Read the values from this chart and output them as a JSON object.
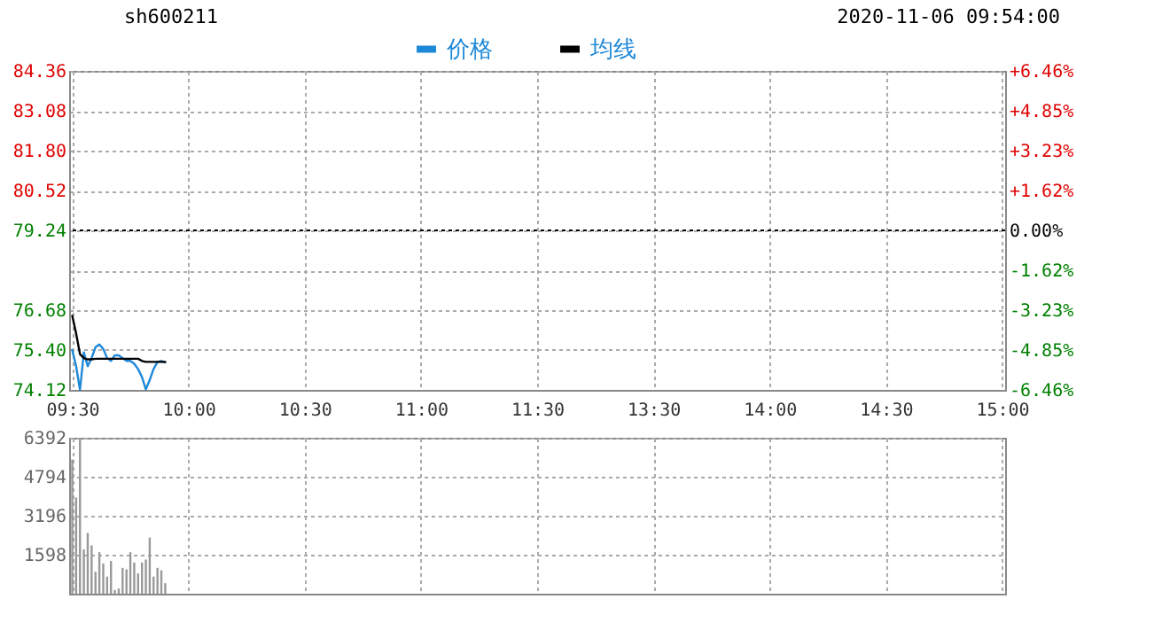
{
  "chart_data": [
    {
      "type": "line",
      "title": "sh600211",
      "annotations": [
        "2020-11-06 09:54:00"
      ],
      "categories": [
        "09:30",
        null,
        null,
        null,
        null,
        null,
        null,
        null,
        null,
        null,
        null,
        null,
        null,
        null,
        null,
        null,
        null,
        null,
        null,
        null,
        null,
        null,
        null,
        null,
        null,
        null,
        null,
        null,
        null,
        null,
        "10:00",
        null,
        null,
        null,
        null,
        null,
        null,
        null,
        null,
        null,
        null,
        null,
        null,
        null,
        null,
        null,
        null,
        null,
        null,
        null,
        null,
        null,
        null,
        null,
        null,
        null,
        null,
        null,
        null,
        null,
        "10:30",
        null,
        null,
        null,
        null,
        null,
        null,
        null,
        null,
        null,
        null,
        null,
        null,
        null,
        null,
        null,
        null,
        null,
        null,
        null,
        null,
        null,
        null,
        null,
        null,
        null,
        null,
        null,
        null,
        null,
        "11:00",
        null,
        null,
        null,
        null,
        null,
        null,
        null,
        null,
        null,
        null,
        null,
        null,
        null,
        null,
        null,
        null,
        null,
        null,
        null,
        null,
        null,
        null,
        null,
        null,
        null,
        null,
        null,
        null,
        null,
        "11:30",
        null,
        null,
        null,
        null,
        null,
        null,
        null,
        null,
        null,
        null,
        null,
        null,
        null,
        null,
        null,
        null,
        null,
        null,
        null,
        null,
        null,
        null,
        null,
        null,
        null,
        null,
        null,
        null,
        null,
        "13:30",
        null,
        null,
        null,
        null,
        null,
        null,
        null,
        null,
        null,
        null,
        null,
        null,
        null,
        null,
        null,
        null,
        null,
        null,
        null,
        null,
        null,
        null,
        null,
        null,
        null,
        null,
        null,
        null,
        null,
        "14:00",
        null,
        null,
        null,
        null,
        null,
        null,
        null,
        null,
        null,
        null,
        null,
        null,
        null,
        null,
        null,
        null,
        null,
        null,
        null,
        null,
        null,
        null,
        null,
        null,
        null,
        null,
        null,
        null,
        null,
        "14:30",
        null,
        null,
        null,
        null,
        null,
        null,
        null,
        null,
        null,
        null,
        null,
        null,
        null,
        null,
        null,
        null,
        null,
        null,
        null,
        null,
        null,
        null,
        null,
        null,
        null,
        null,
        null,
        null,
        null,
        "15:00"
      ],
      "ylim": [
        74.12,
        84.36
      ],
      "yticks": [
        74.12,
        {
          "value": 75.4,
          "label": "75.40"
        },
        76.68,
        {
          "value": 77.96,
          "label": null
        },
        79.24,
        80.52,
        {
          "value": 81.8,
          "label": "81.80"
        },
        83.08,
        84.36
      ],
      "y2lim": [
        -6.46,
        6.46
      ],
      "y2ticks": [
        {
          "value": -6.46,
          "label": "-6.46%"
        },
        {
          "value": -4.85,
          "label": "-4.85%"
        },
        {
          "value": -3.23,
          "label": "-3.23%"
        },
        {
          "value": -1.62,
          "label": "-1.62%"
        },
        {
          "value": 0,
          "label": "0.00%"
        },
        {
          "value": 1.62,
          "label": "+1.62%"
        },
        {
          "value": 3.23,
          "label": "+3.23%"
        },
        {
          "value": 4.85,
          "label": "+4.85%"
        },
        {
          "value": 6.46,
          "label": "+6.46%"
        }
      ],
      "series": [
        {
          "name": "价格",
          "color": "#1e88d8",
          "values": [
            75.4,
            74.88,
            74.12,
            75.32,
            74.88,
            75.14,
            75.49,
            75.58,
            75.44,
            75.14,
            75.05,
            75.23,
            75.23,
            75.14,
            75.05,
            75.05,
            74.96,
            74.79,
            74.53,
            74.14,
            74.44,
            74.79,
            75.02,
            75.05,
            75.0,
            null,
            null,
            null,
            null,
            null,
            null,
            null,
            null,
            null,
            null,
            null,
            null,
            null,
            null,
            null,
            null,
            null,
            null,
            null,
            null,
            null,
            null,
            null,
            null,
            null,
            null,
            null,
            null,
            null,
            null,
            null,
            null,
            null,
            null,
            null,
            null,
            null,
            null,
            null,
            null,
            null,
            null,
            null,
            null,
            null,
            null,
            null,
            null,
            null,
            null,
            null,
            null,
            null,
            null,
            null,
            null,
            null,
            null,
            null,
            null,
            null,
            null,
            null,
            null,
            null,
            null,
            null,
            null,
            null,
            null,
            null,
            null,
            null,
            null,
            null,
            null,
            null,
            null,
            null,
            null,
            null,
            null,
            null,
            null,
            null,
            null,
            null,
            null,
            null,
            null,
            null,
            null,
            null,
            null,
            null,
            null,
            null,
            null,
            null,
            null,
            null,
            null,
            null,
            null,
            null,
            null,
            null,
            null,
            null,
            null,
            null,
            null,
            null,
            null,
            null,
            null,
            null,
            null,
            null,
            null,
            null,
            null,
            null,
            null,
            null,
            null,
            null,
            null,
            null,
            null,
            null,
            null,
            null,
            null,
            null,
            null,
            null,
            null,
            null,
            null,
            null,
            null,
            null,
            null,
            null,
            null,
            null,
            null,
            null,
            null,
            null,
            null,
            null,
            null,
            null,
            null,
            null,
            null,
            null,
            null,
            null,
            null,
            null,
            null,
            null,
            null,
            null,
            null,
            null,
            null,
            null,
            null,
            null,
            null,
            null,
            null,
            null,
            null,
            null,
            null,
            null,
            null,
            null,
            null,
            null,
            null,
            null,
            null,
            null,
            null,
            null,
            null,
            null,
            null,
            null,
            null,
            null,
            null,
            null,
            null,
            null,
            null,
            null,
            null,
            null,
            null,
            null,
            null,
            null,
            null,
            null,
            null,
            null,
            null,
            null,
            null
          ]
        },
        {
          "name": "均线",
          "color": "#000000",
          "values": [
            76.5,
            75.93,
            75.27,
            75.14,
            75.1,
            75.1,
            75.12,
            75.12,
            75.12,
            75.12,
            75.12,
            75.12,
            75.12,
            75.12,
            75.12,
            75.12,
            75.12,
            75.12,
            75.05,
            75.02,
            75.02,
            75.02,
            75.02,
            75.02,
            75.02,
            null,
            null,
            null,
            null,
            null,
            null,
            null,
            null,
            null,
            null,
            null,
            null,
            null,
            null,
            null,
            null,
            null,
            null,
            null,
            null,
            null,
            null,
            null,
            null,
            null,
            null,
            null,
            null,
            null,
            null,
            null,
            null,
            null,
            null,
            null,
            null,
            null,
            null,
            null,
            null,
            null,
            null,
            null,
            null,
            null,
            null,
            null,
            null,
            null,
            null,
            null,
            null,
            null,
            null,
            null,
            null,
            null,
            null,
            null,
            null,
            null,
            null,
            null,
            null,
            null,
            null,
            null,
            null,
            null,
            null,
            null,
            null,
            null,
            null,
            null,
            null,
            null,
            null,
            null,
            null,
            null,
            null,
            null,
            null,
            null,
            null,
            null,
            null,
            null,
            null,
            null,
            null,
            null,
            null,
            null,
            null,
            null,
            null,
            null,
            null,
            null,
            null,
            null,
            null,
            null,
            null,
            null,
            null,
            null,
            null,
            null,
            null,
            null,
            null,
            null,
            null,
            null,
            null,
            null,
            null,
            null,
            null,
            null,
            null,
            null,
            null,
            null,
            null,
            null,
            null,
            null,
            null,
            null,
            null,
            null,
            null,
            null,
            null,
            null,
            null,
            null,
            null,
            null,
            null,
            null,
            null,
            null,
            null,
            null,
            null,
            null,
            null,
            null,
            null,
            null,
            null,
            null,
            null,
            null,
            null,
            null,
            null,
            null,
            null,
            null,
            null,
            null,
            null,
            null,
            null,
            null,
            null,
            null,
            null,
            null,
            null,
            null,
            null,
            null,
            null,
            null,
            null,
            null,
            null,
            null,
            null,
            null,
            null,
            null,
            null,
            null,
            null,
            null,
            null,
            null,
            null,
            null,
            null,
            null,
            null,
            null,
            null,
            null,
            null,
            null,
            null,
            null,
            null,
            null,
            null,
            null,
            null,
            null,
            null,
            null,
            null
          ]
        }
      ],
      "ref_lines": [
        {
          "axis": "y2",
          "value": 0,
          "color": "#000000",
          "line_style": "dotted"
        }
      ],
      "legend": "top",
      "grid": true
    },
    {
      "type": "bar",
      "categories": [
        null,
        null,
        null,
        null,
        null,
        null,
        null,
        null,
        null,
        null,
        null,
        null,
        null,
        null,
        null,
        null,
        null,
        null,
        null,
        null,
        null,
        null,
        null,
        null,
        null,
        null,
        null,
        null,
        null,
        null,
        null,
        null,
        null,
        null,
        null,
        null,
        null,
        null,
        null,
        null,
        null,
        null,
        null,
        null,
        null,
        null,
        null,
        null,
        null,
        null,
        null,
        null,
        null,
        null,
        null,
        null,
        null,
        null,
        null,
        null,
        null,
        null,
        null,
        null,
        null,
        null,
        null,
        null,
        null,
        null,
        null,
        null,
        null,
        null,
        null,
        null,
        null,
        null,
        null,
        null,
        null,
        null,
        null,
        null,
        null,
        null,
        null,
        null,
        null,
        null,
        null,
        null,
        null,
        null,
        null,
        null,
        null,
        null,
        null,
        null,
        null,
        null,
        null,
        null,
        null,
        null,
        null,
        null,
        null,
        null,
        null,
        null,
        null,
        null,
        null,
        null,
        null,
        null,
        null,
        null,
        null,
        null,
        null,
        null,
        null,
        null,
        null,
        null,
        null,
        null,
        null,
        null,
        null,
        null,
        null,
        null,
        null,
        null,
        null,
        null,
        null,
        null,
        null,
        null,
        null,
        null,
        null,
        null,
        null,
        null,
        null,
        null,
        null,
        null,
        null,
        null,
        null,
        null,
        null,
        null,
        null,
        null,
        null,
        null,
        null,
        null,
        null,
        null,
        null,
        null,
        null,
        null,
        null,
        null,
        null,
        null,
        null,
        null,
        null,
        null,
        null,
        null,
        null,
        null,
        null,
        null,
        null,
        null,
        null,
        null,
        null,
        null,
        null,
        null,
        null,
        null,
        null,
        null,
        null,
        null,
        null,
        null,
        null,
        null,
        null,
        null,
        null,
        null,
        null,
        null,
        null,
        null,
        null,
        null,
        null,
        null,
        null,
        null,
        null,
        null,
        null,
        null,
        null,
        null,
        null,
        null,
        null,
        null,
        null,
        null,
        null,
        null,
        null,
        null,
        null,
        null,
        null,
        null,
        null,
        null,
        null
      ],
      "values": [
        5500,
        3940,
        6390,
        1810,
        2490,
        1980,
        900,
        1700,
        1240,
        700,
        1340,
        150,
        210,
        1060,
        1000,
        1700,
        1280,
        830,
        1280,
        1400,
        2300,
        700,
        1060,
        960,
        430,
        null,
        null,
        null,
        null,
        null,
        null,
        null,
        null,
        null,
        null,
        null,
        null,
        null,
        null,
        null,
        null,
        null,
        null,
        null,
        null,
        null,
        null,
        null,
        null,
        null,
        null,
        null,
        null,
        null,
        null,
        null,
        null,
        null,
        null,
        null,
        null,
        null,
        null,
        null,
        null,
        null,
        null,
        null,
        null,
        null,
        null,
        null,
        null,
        null,
        null,
        null,
        null,
        null,
        null,
        null,
        null,
        null,
        null,
        null,
        null,
        null,
        null,
        null,
        null,
        null,
        null,
        null,
        null,
        null,
        null,
        null,
        null,
        null,
        null,
        null,
        null,
        null,
        null,
        null,
        null,
        null,
        null,
        null,
        null,
        null,
        null,
        null,
        null,
        null,
        null,
        null,
        null,
        null,
        null,
        null,
        null,
        null,
        null,
        null,
        null,
        null,
        null,
        null,
        null,
        null,
        null,
        null,
        null,
        null,
        null,
        null,
        null,
        null,
        null,
        null,
        null,
        null,
        null,
        null,
        null,
        null,
        null,
        null,
        null,
        null,
        null,
        null,
        null,
        null,
        null,
        null,
        null,
        null,
        null,
        null,
        null,
        null,
        null,
        null,
        null,
        null,
        null,
        null,
        null,
        null,
        null,
        null,
        null,
        null,
        null,
        null,
        null,
        null,
        null,
        null,
        null,
        null,
        null,
        null,
        null,
        null,
        null,
        null,
        null,
        null,
        null,
        null,
        null,
        null,
        null,
        null,
        null,
        null,
        null,
        null,
        null,
        null,
        null,
        null,
        null,
        null,
        null,
        null,
        null,
        null,
        null,
        null,
        null,
        null,
        null,
        null,
        null,
        null,
        null,
        null,
        null,
        null,
        null,
        null,
        null,
        null,
        null,
        null,
        null,
        null,
        null,
        null,
        null,
        null,
        null,
        null,
        null,
        null,
        null,
        null,
        null
      ],
      "color": "#999999",
      "ylim": [
        0,
        6392
      ],
      "yticks": [
        1598,
        3196,
        4794,
        6392
      ],
      "grid": true,
      "tick_labels": "y"
    }
  ]
}
